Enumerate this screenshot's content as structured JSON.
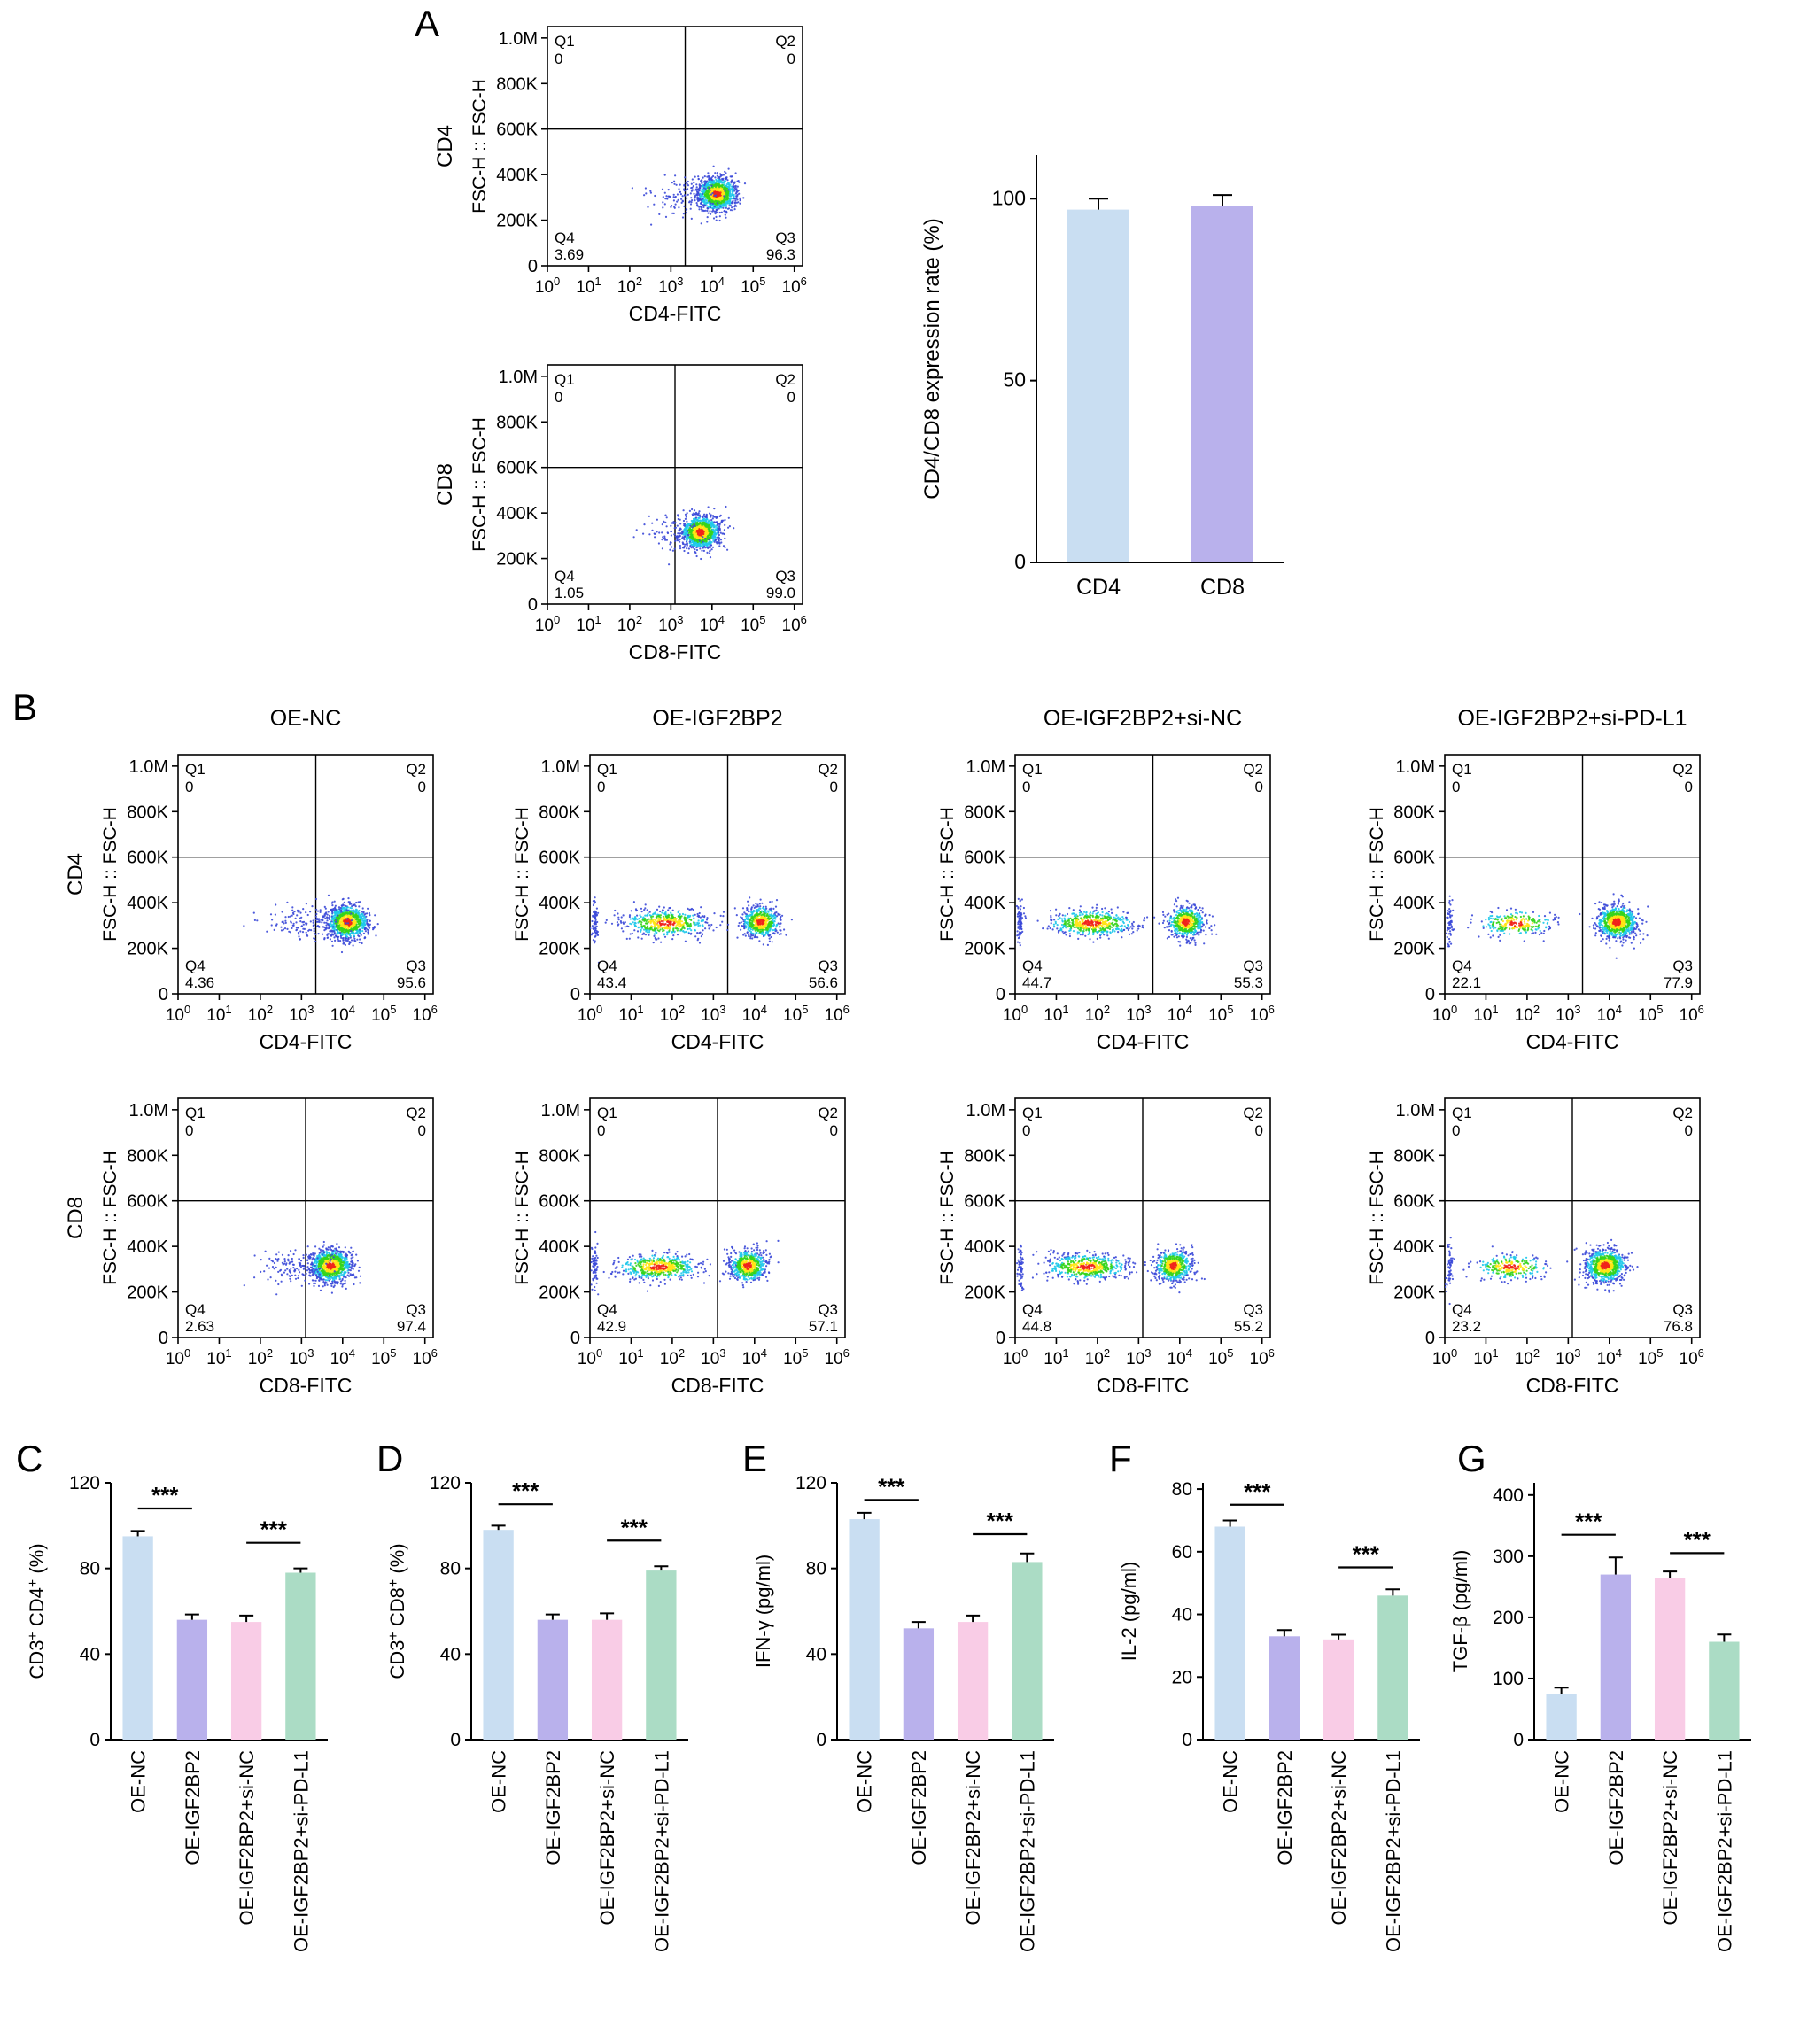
{
  "panels": {
    "A": {
      "label": "A"
    },
    "B": {
      "label": "B"
    },
    "C": {
      "label": "C"
    },
    "D": {
      "label": "D"
    },
    "E": {
      "label": "E"
    },
    "F": {
      "label": "F"
    },
    "G": {
      "label": "G"
    }
  },
  "flow_columns": [
    "OE-NC",
    "OE-IGF2BP2",
    "OE-IGF2BP2+si-NC",
    "OE-IGF2BP2+si-PD-L1"
  ],
  "treatment_groups": [
    "OE-NC",
    "OE-IGF2BP2",
    "OE-IGF2BP2+si-NC",
    "OE-IGF2BP2+si-PD-L1"
  ],
  "colors": {
    "blue": "#c9def2",
    "purple": "#b9b1ec",
    "pink": "#f9cce6",
    "green": "#abdcc5",
    "axis": "#000000"
  },
  "flow_axes": {
    "ylabel": "FSC-H :: FSC-H",
    "ylim": [
      0,
      1050000
    ],
    "y_ticks": [
      {
        "v": 1000000,
        "label": "1.0M"
      },
      {
        "v": 800000,
        "label": "800K"
      },
      {
        "v": 600000,
        "label": "600K"
      },
      {
        "v": 400000,
        "label": "400K"
      },
      {
        "v": 200000,
        "label": "200K"
      },
      {
        "v": 0,
        "label": "0"
      }
    ],
    "x_tick_base": "10",
    "x_tick_exponents": [
      0,
      1,
      2,
      3,
      4,
      5,
      6
    ],
    "gate_y_value": 600000,
    "quadrant_names": [
      "Q1",
      "Q2",
      "Q3",
      "Q4"
    ],
    "cluster_format": [
      "cx",
      "cy",
      "sx",
      "sy",
      "n",
      "style",
      "seed"
    ]
  },
  "chart_data": [
    {
      "id": "flow-A-0",
      "type": "scatter",
      "subtype": "flow-density",
      "marker": "CD4",
      "xlabel": "CD4-FITC",
      "quadrants": {
        "Q1": "0",
        "Q2": "0",
        "Q3": "96.3",
        "Q4": "3.69"
      },
      "vline": 0.54,
      "clusters": [
        [
          0.665,
          0.3,
          0.038,
          0.034,
          1100,
          "heat",
          11
        ],
        [
          0.54,
          0.295,
          0.075,
          0.04,
          130,
          "mono",
          12
        ]
      ]
    },
    {
      "id": "flow-A-1",
      "type": "scatter",
      "subtype": "flow-density",
      "marker": "CD8",
      "xlabel": "CD8-FITC",
      "quadrants": {
        "Q1": "0",
        "Q2": "0",
        "Q3": "99.0",
        "Q4": "1.05"
      },
      "vline": 0.5,
      "clusters": [
        [
          0.6,
          0.3,
          0.038,
          0.034,
          1100,
          "heat",
          21
        ],
        [
          0.5,
          0.295,
          0.06,
          0.04,
          80,
          "mono",
          22
        ]
      ]
    },
    {
      "id": "flow-B-0-0",
      "type": "scatter",
      "subtype": "flow-density",
      "marker": "CD4",
      "xlabel": "CD4-FITC",
      "group": "OE-NC",
      "quadrants": {
        "Q1": "0",
        "Q2": "0",
        "Q3": "95.6",
        "Q4": "4.36"
      },
      "vline": 0.54,
      "clusters": [
        [
          0.665,
          0.3,
          0.04,
          0.035,
          1000,
          "heat",
          31
        ],
        [
          0.52,
          0.295,
          0.09,
          0.04,
          170,
          "mono",
          32
        ]
      ]
    },
    {
      "id": "flow-B-0-1",
      "type": "scatter",
      "subtype": "flow-density",
      "marker": null,
      "xlabel": "CD4-FITC",
      "group": "OE-IGF2BP2",
      "quadrants": {
        "Q1": "0",
        "Q2": "0",
        "Q3": "56.6",
        "Q4": "43.4"
      },
      "vline": 0.54,
      "clusters": [
        [
          0.67,
          0.3,
          0.036,
          0.033,
          620,
          "heat",
          41
        ],
        [
          0.3,
          0.295,
          0.085,
          0.027,
          550,
          "heat",
          42
        ],
        [
          0.02,
          0.3,
          0.006,
          0.05,
          70,
          "mono",
          43
        ]
      ]
    },
    {
      "id": "flow-B-0-2",
      "type": "scatter",
      "subtype": "flow-density",
      "marker": null,
      "xlabel": "CD4-FITC",
      "group": "OE-IGF2BP2+si-NC",
      "quadrants": {
        "Q1": "0",
        "Q2": "0",
        "Q3": "55.3",
        "Q4": "44.7"
      },
      "vline": 0.54,
      "clusters": [
        [
          0.67,
          0.3,
          0.036,
          0.033,
          610,
          "heat",
          51
        ],
        [
          0.3,
          0.295,
          0.085,
          0.027,
          560,
          "heat",
          52
        ],
        [
          0.02,
          0.3,
          0.006,
          0.05,
          80,
          "mono",
          53
        ]
      ]
    },
    {
      "id": "flow-B-0-3",
      "type": "scatter",
      "subtype": "flow-density",
      "marker": null,
      "xlabel": "CD4-FITC",
      "group": "OE-IGF2BP2+si-PD-L1",
      "quadrants": {
        "Q1": "0",
        "Q2": "0",
        "Q3": "77.9",
        "Q4": "22.1"
      },
      "vline": 0.54,
      "clusters": [
        [
          0.675,
          0.3,
          0.04,
          0.035,
          860,
          "heat",
          61
        ],
        [
          0.28,
          0.295,
          0.075,
          0.026,
          280,
          "heat",
          62
        ],
        [
          0.02,
          0.3,
          0.006,
          0.05,
          60,
          "mono",
          63
        ]
      ]
    },
    {
      "id": "flow-B-1-0",
      "type": "scatter",
      "subtype": "flow-density",
      "marker": "CD8",
      "xlabel": "CD8-FITC",
      "group": "OE-NC",
      "quadrants": {
        "Q1": "0",
        "Q2": "0",
        "Q3": "97.4",
        "Q4": "2.63"
      },
      "vline": 0.5,
      "clusters": [
        [
          0.6,
          0.3,
          0.04,
          0.035,
          1000,
          "heat",
          71
        ],
        [
          0.47,
          0.295,
          0.08,
          0.04,
          140,
          "mono",
          72
        ]
      ]
    },
    {
      "id": "flow-B-1-1",
      "type": "scatter",
      "subtype": "flow-density",
      "marker": null,
      "xlabel": "CD8-FITC",
      "group": "OE-IGF2BP2",
      "quadrants": {
        "Q1": "0",
        "Q2": "0",
        "Q3": "57.1",
        "Q4": "42.9"
      },
      "vline": 0.5,
      "clusters": [
        [
          0.62,
          0.3,
          0.036,
          0.033,
          620,
          "heat",
          81
        ],
        [
          0.27,
          0.295,
          0.08,
          0.027,
          550,
          "heat",
          82
        ],
        [
          0.02,
          0.3,
          0.006,
          0.05,
          70,
          "mono",
          83
        ]
      ]
    },
    {
      "id": "flow-B-1-2",
      "type": "scatter",
      "subtype": "flow-density",
      "marker": null,
      "xlabel": "CD8-FITC",
      "group": "OE-IGF2BP2+si-NC",
      "quadrants": {
        "Q1": "0",
        "Q2": "0",
        "Q3": "55.2",
        "Q4": "44.8"
      },
      "vline": 0.5,
      "clusters": [
        [
          0.62,
          0.3,
          0.036,
          0.033,
          610,
          "heat",
          91
        ],
        [
          0.28,
          0.295,
          0.08,
          0.027,
          560,
          "heat",
          92
        ],
        [
          0.02,
          0.3,
          0.006,
          0.05,
          70,
          "mono",
          93
        ]
      ]
    },
    {
      "id": "flow-B-1-3",
      "type": "scatter",
      "subtype": "flow-density",
      "marker": null,
      "xlabel": "CD8-FITC",
      "group": "OE-IGF2BP2+si-PD-L1",
      "quadrants": {
        "Q1": "0",
        "Q2": "0",
        "Q3": "76.8",
        "Q4": "23.2"
      },
      "vline": 0.5,
      "clusters": [
        [
          0.63,
          0.3,
          0.04,
          0.035,
          860,
          "heat",
          101
        ],
        [
          0.26,
          0.295,
          0.072,
          0.026,
          280,
          "heat",
          102
        ],
        [
          0.02,
          0.3,
          0.006,
          0.05,
          60,
          "mono",
          103
        ]
      ]
    },
    {
      "id": "bar-A",
      "type": "bar",
      "layout": "big",
      "ylabel": "CD4/CD8 expression rate (%)",
      "sup_plus": false,
      "categories": [
        "CD4",
        "CD8"
      ],
      "values": [
        97,
        98
      ],
      "errors": [
        3,
        3
      ],
      "yticks": [
        0,
        50,
        100
      ],
      "ylim": [
        0,
        112
      ],
      "bar_colors": [
        "blue",
        "purple"
      ],
      "significance": []
    },
    {
      "id": "bar-C",
      "type": "bar",
      "layout": "small",
      "ylabel": "CD3+ CD4+ (%)",
      "sup_plus": true,
      "categories": [
        "OE-NC",
        "OE-IGF2BP2",
        "OE-IGF2BP2+si-NC",
        "OE-IGF2BP2+si-PD-L1"
      ],
      "values": [
        95,
        56,
        55,
        78
      ],
      "errors": [
        2.5,
        2.5,
        3,
        2
      ],
      "yticks": [
        0,
        40,
        80,
        120
      ],
      "ylim": [
        0,
        120
      ],
      "bar_colors": [
        "blue",
        "purple",
        "pink",
        "green"
      ],
      "significance": [
        {
          "x1": 0,
          "x2": 1,
          "y": 108,
          "label": "***"
        },
        {
          "x1": 2,
          "x2": 3,
          "y": 92,
          "label": "***"
        }
      ]
    },
    {
      "id": "bar-D",
      "type": "bar",
      "layout": "small",
      "ylabel": "CD3+ CD8+ (%)",
      "sup_plus": true,
      "categories": [
        "OE-NC",
        "OE-IGF2BP2",
        "OE-IGF2BP2+si-NC",
        "OE-IGF2BP2+si-PD-L1"
      ],
      "values": [
        98,
        56,
        56,
        79
      ],
      "errors": [
        2,
        2.5,
        3,
        2
      ],
      "yticks": [
        0,
        40,
        80,
        120
      ],
      "ylim": [
        0,
        120
      ],
      "bar_colors": [
        "blue",
        "purple",
        "pink",
        "green"
      ],
      "significance": [
        {
          "x1": 0,
          "x2": 1,
          "y": 110,
          "label": "***"
        },
        {
          "x1": 2,
          "x2": 3,
          "y": 93,
          "label": "***"
        }
      ]
    },
    {
      "id": "bar-E",
      "type": "bar",
      "layout": "small",
      "ylabel": "IFN-γ (pg/ml)",
      "sup_plus": false,
      "categories": [
        "OE-NC",
        "OE-IGF2BP2",
        "OE-IGF2BP2+si-NC",
        "OE-IGF2BP2+si-PD-L1"
      ],
      "values": [
        103,
        52,
        55,
        83
      ],
      "errors": [
        3,
        3,
        3,
        4
      ],
      "yticks": [
        0,
        40,
        80,
        120
      ],
      "ylim": [
        0,
        120
      ],
      "bar_colors": [
        "blue",
        "purple",
        "pink",
        "green"
      ],
      "significance": [
        {
          "x1": 0,
          "x2": 1,
          "y": 112,
          "label": "***"
        },
        {
          "x1": 2,
          "x2": 3,
          "y": 96,
          "label": "***"
        }
      ]
    },
    {
      "id": "bar-F",
      "type": "bar",
      "layout": "small",
      "ylabel": "IL-2 (pg/ml)",
      "sup_plus": false,
      "categories": [
        "OE-NC",
        "OE-IGF2BP2",
        "OE-IGF2BP2+si-NC",
        "OE-IGF2BP2+si-PD-L1"
      ],
      "values": [
        68,
        33,
        32,
        46
      ],
      "errors": [
        2,
        2,
        1.5,
        2
      ],
      "yticks": [
        0,
        20,
        40,
        60,
        80
      ],
      "ylim": [
        0,
        82
      ],
      "bar_colors": [
        "blue",
        "purple",
        "pink",
        "green"
      ],
      "significance": [
        {
          "x1": 0,
          "x2": 1,
          "y": 75,
          "label": "***"
        },
        {
          "x1": 2,
          "x2": 3,
          "y": 55,
          "label": "***"
        }
      ]
    },
    {
      "id": "bar-G",
      "type": "bar",
      "layout": "small",
      "ylabel": "TGF-β (pg/ml)",
      "sup_plus": false,
      "categories": [
        "OE-NC",
        "OE-IGF2BP2",
        "OE-IGF2BP2+si-NC",
        "OE-IGF2BP2+si-PD-L1"
      ],
      "values": [
        75,
        270,
        265,
        160
      ],
      "errors": [
        10,
        28,
        10,
        12
      ],
      "yticks": [
        0,
        100,
        200,
        300,
        400
      ],
      "ylim": [
        0,
        420
      ],
      "bar_colors": [
        "blue",
        "purple",
        "pink",
        "green"
      ],
      "significance": [
        {
          "x1": 0,
          "x2": 1,
          "y": 335,
          "label": "***"
        },
        {
          "x1": 2,
          "x2": 3,
          "y": 305,
          "label": "***"
        }
      ]
    }
  ]
}
